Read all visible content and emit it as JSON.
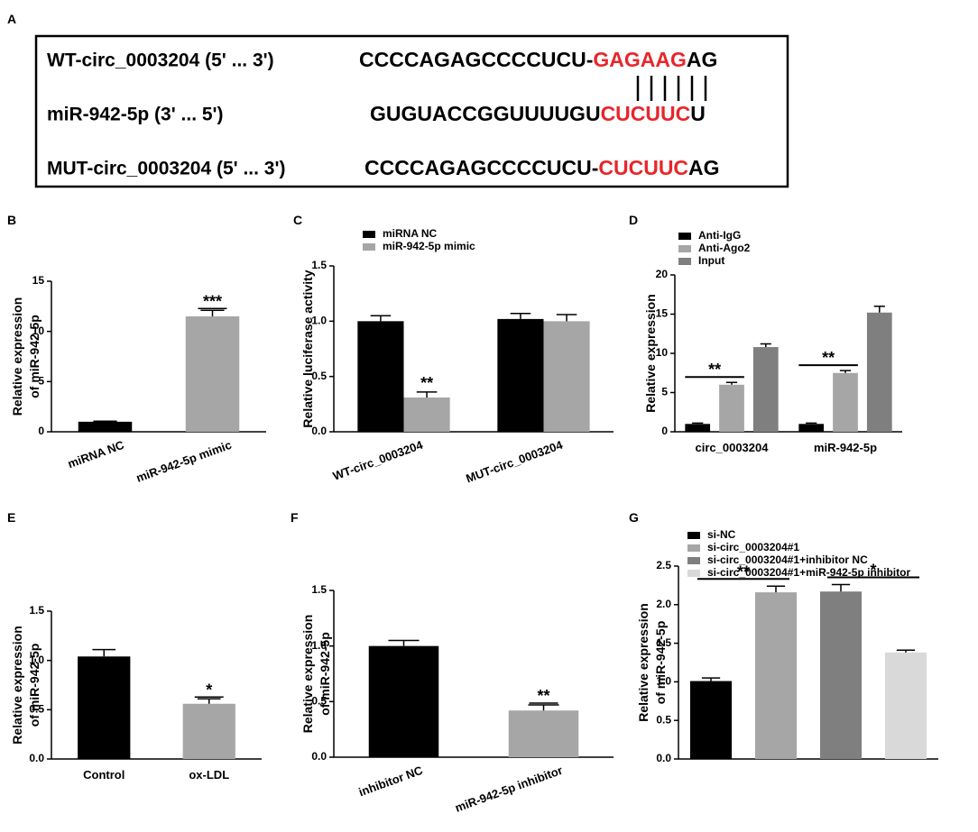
{
  "panel_a": {
    "label": "A",
    "highlight_color": "#e8262b",
    "rows": [
      {
        "name": "WT-circ_0003204 (5' ... 3')",
        "sequence": [
          "CCCCAGAGCCCCUCU-",
          "GAGAAG",
          "AG"
        ]
      },
      {
        "name": "miR-942-5p (3' ... 5')",
        "sequence": [
          "GUGUACCGGUUUUGU",
          "CUCUUC",
          "U"
        ]
      },
      {
        "name": "MUT-circ_0003204 (5' ... 3')",
        "sequence": [
          "CCCCAGAGCCCCUCU-",
          "CUCUUC",
          "AG"
        ]
      }
    ]
  },
  "chart_data": [
    {
      "type": "bar",
      "label": "B",
      "ylabel": [
        "Relative expression",
        "of miR-942-5p"
      ],
      "categories": [
        "miRNA NC",
        "miR-942-5p mimic"
      ],
      "values": [
        1.0,
        11.5
      ],
      "errors": [
        0.05,
        0.6
      ],
      "colors": [
        "#000000",
        "#a6a6a6"
      ],
      "significance": [
        null,
        "***"
      ],
      "ylim": [
        0,
        15
      ],
      "yticks": [
        0,
        5,
        10,
        15
      ],
      "legend": false
    },
    {
      "type": "bar",
      "label": "C",
      "ylabel": [
        "Relative luciferase activity"
      ],
      "categories": [
        "WT-circ_0003204",
        "MUT-circ_0003204"
      ],
      "series": [
        {
          "name": "miRNA NC",
          "color": "#000000",
          "values": [
            1.0,
            1.02
          ],
          "errors": [
            0.05,
            0.05
          ]
        },
        {
          "name": "miR-942-5p mimic",
          "color": "#a6a6a6",
          "values": [
            0.31,
            1.0
          ],
          "errors": [
            0.05,
            0.06
          ],
          "significance": [
            "**",
            null
          ]
        }
      ],
      "ylim": [
        0,
        1.5
      ],
      "yticks": [
        {
          "value": 0,
          "label": "0.0"
        },
        {
          "value": 0.5,
          "label": "0.5"
        },
        {
          "value": 1,
          "label": "1.0"
        },
        {
          "value": 1.5,
          "label": "1.5"
        }
      ],
      "legend": true
    },
    {
      "type": "bar",
      "label": "D",
      "ylabel": [
        "Relative expression"
      ],
      "categories": [
        "circ_0003204",
        "miR-942-5p"
      ],
      "series": [
        {
          "name": "Anti-IgG",
          "color": "#000000",
          "values": [
            1.0,
            1.0
          ],
          "errors": [
            0.1,
            0.1
          ]
        },
        {
          "name": "Anti-Ago2",
          "color": "#a6a6a6",
          "values": [
            6.0,
            7.5
          ],
          "errors": [
            0.3,
            0.3
          ]
        },
        {
          "name": "Input",
          "color": "#7f7f7f",
          "values": [
            10.8,
            15.2
          ],
          "errors": [
            0.4,
            0.8
          ]
        }
      ],
      "significance": [
        "**",
        "**"
      ],
      "ylim": [
        0,
        20
      ],
      "yticks": [
        0,
        5,
        10,
        15,
        20
      ],
      "legend": true
    },
    {
      "type": "bar",
      "label": "E",
      "ylabel": [
        "Relative expression",
        "of miR-942-5p"
      ],
      "categories": [
        "Control",
        "ox-LDL"
      ],
      "values": [
        1.04,
        0.56
      ],
      "errors": [
        0.07,
        0.05
      ],
      "colors": [
        "#000000",
        "#a6a6a6"
      ],
      "significance": [
        null,
        "*"
      ],
      "ylim": [
        0,
        1.5
      ],
      "yticks": [
        {
          "value": 0,
          "label": "0.0"
        },
        {
          "value": 0.5,
          "label": "0.5"
        },
        {
          "value": 1,
          "label": "1.0"
        },
        {
          "value": 1.5,
          "label": "1.5"
        }
      ],
      "legend": false
    },
    {
      "type": "bar",
      "label": "F",
      "ylabel": [
        "Relative expression",
        "of miR-942-5p"
      ],
      "categories": [
        "inhibitor NC",
        "miR-942-5p inhibitor"
      ],
      "values": [
        1.0,
        0.42
      ],
      "errors": [
        0.05,
        0.05
      ],
      "colors": [
        "#000000",
        "#a6a6a6"
      ],
      "significance": [
        null,
        "**"
      ],
      "ylim": [
        0,
        1.5
      ],
      "yticks": [
        {
          "value": 0,
          "label": "0.0"
        },
        {
          "value": 0.5,
          "label": "0.5"
        },
        {
          "value": 1,
          "label": "1.0"
        },
        {
          "value": 1.5,
          "label": "1.5"
        }
      ],
      "legend": false
    },
    {
      "type": "bar",
      "label": "G",
      "ylabel": [
        "Relative expression",
        "of miR-942-5p"
      ],
      "categories": [
        "si-NC",
        "si-circ_0003204#1",
        "si-circ_0003204#1+inhibitor NC",
        "si-circ_0003204#1+miR-942-5p inhibitor"
      ],
      "values": [
        1.01,
        2.16,
        2.17,
        1.38
      ],
      "errors": [
        0.04,
        0.08,
        0.09,
        0.03
      ],
      "colors": [
        "#000000",
        "#a6a6a6",
        "#7f7f7f",
        "#d9d9d9"
      ],
      "significance": [
        null,
        "**",
        null,
        "*"
      ],
      "ylim": [
        0,
        2.5
      ],
      "yticks": [
        {
          "value": 0,
          "label": "0.0"
        },
        {
          "value": 0.5,
          "label": "0.5"
        },
        {
          "value": 1,
          "label": "1.0"
        },
        {
          "value": 1.5,
          "label": "1.5"
        },
        {
          "value": 2,
          "label": "2.0"
        },
        {
          "value": 2.5,
          "label": "2.5"
        }
      ],
      "legend": true
    }
  ]
}
